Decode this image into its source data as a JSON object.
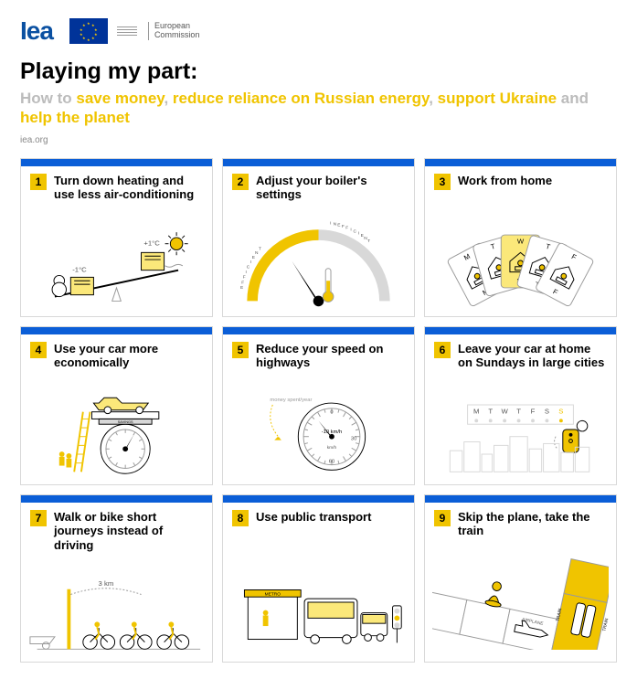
{
  "colors": {
    "blue": "#0a50a1",
    "blue_bar": "#0b5ed7",
    "yellow": "#f0c400",
    "yellow_light": "#fbe87a",
    "grey_line": "#9a9a9a",
    "grey_light": "#d8d8d8",
    "grey_text": "#bcbcbc",
    "black": "#000000"
  },
  "header": {
    "iea": "Iea",
    "ec_label": "European\nCommission"
  },
  "title": "Playing my part:",
  "subtitle": {
    "parts": [
      {
        "text": "How to ",
        "cls": "grey"
      },
      {
        "text": "save money",
        "cls": "yellow"
      },
      {
        "text": ", ",
        "cls": "grey"
      },
      {
        "text": "reduce reliance on Russian energy",
        "cls": "yellow"
      },
      {
        "text": ", ",
        "cls": "grey"
      },
      {
        "text": "support Ukraine",
        "cls": "yellow"
      },
      {
        "text": " and ",
        "cls": "grey"
      },
      {
        "text": "help the planet",
        "cls": "yellow"
      }
    ]
  },
  "site": "iea.org",
  "cards": [
    {
      "n": 1,
      "title": "Turn down heating and use less air-conditioning",
      "labels": {
        "cold": "-1°C",
        "hot": "+1°C"
      }
    },
    {
      "n": 2,
      "title": "Adjust your boiler's settings",
      "labels": {
        "left": "EFFICIENT",
        "right": "INEFFICIENT"
      }
    },
    {
      "n": 3,
      "title": "Work from home",
      "labels": {
        "days": [
          "M",
          "T",
          "W",
          "T",
          "F"
        ],
        "wfh": "W"
      }
    },
    {
      "n": 4,
      "title": "Use your car more economically",
      "labels": {
        "tag": "SAVINGS"
      }
    },
    {
      "n": 5,
      "title": "Reduce your speed on highways",
      "labels": {
        "note": "money spent/year",
        "center": "-10 km/h",
        "t0": "0",
        "t30": "30",
        "t60": "60",
        "unit": "km/h"
      }
    },
    {
      "n": 6,
      "title": "Leave your car at home on Sundays in large cities",
      "labels": {
        "days": [
          "M",
          "T",
          "W",
          "T",
          "F",
          "S",
          "S"
        ]
      }
    },
    {
      "n": 7,
      "title": "Walk or bike short journeys instead of driving",
      "labels": {
        "dist": "3 km"
      }
    },
    {
      "n": 8,
      "title": "Use public transport",
      "labels": {
        "sign": "METRO"
      }
    },
    {
      "n": 9,
      "title": "Skip the plane, take the train",
      "labels": {
        "plane": "AIRPLANE",
        "train": "TRAIN"
      }
    }
  ]
}
